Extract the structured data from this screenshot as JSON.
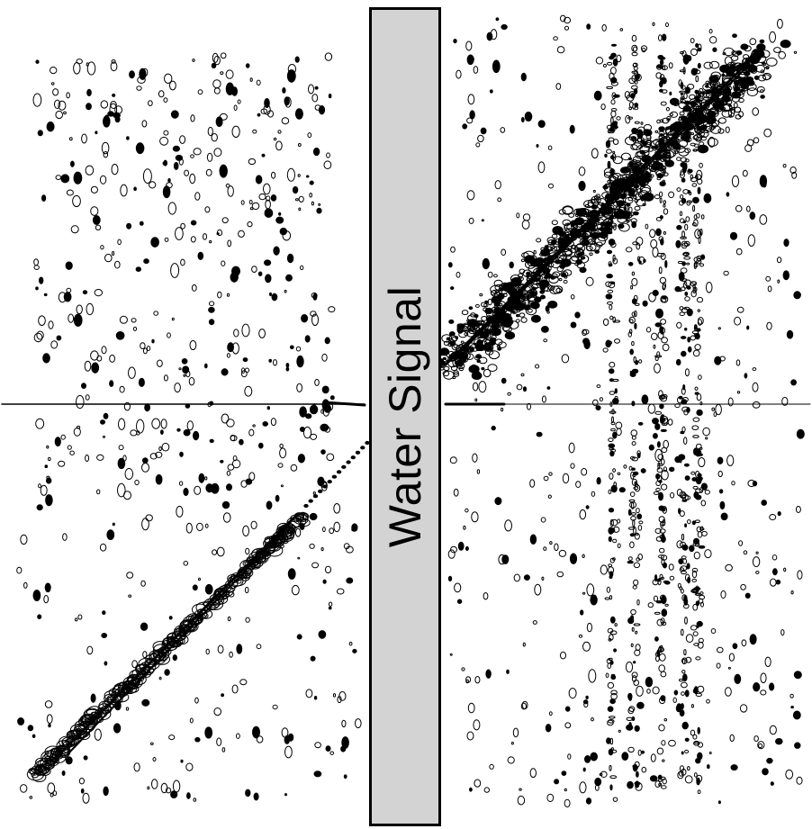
{
  "figure": {
    "water_band_label": "Water Signal",
    "colors": {
      "background": "#ffffff",
      "contour": "#000000",
      "band_fill": "#d3d3d3"
    }
  }
}
